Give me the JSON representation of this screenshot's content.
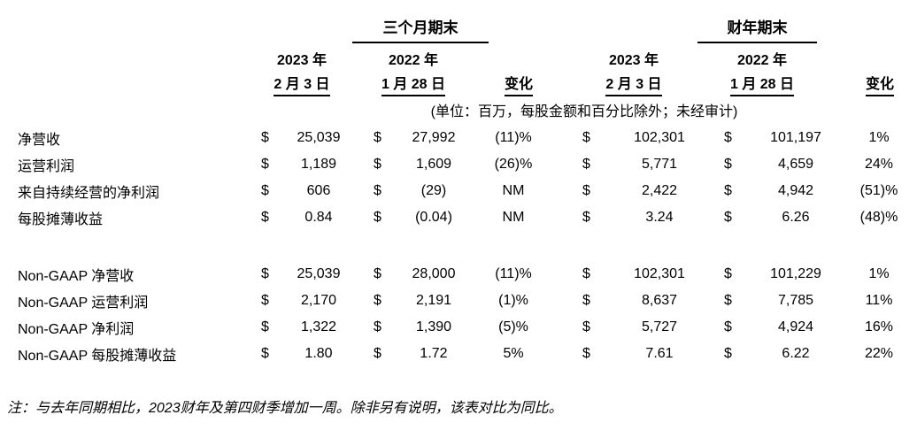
{
  "table": {
    "group_headers": {
      "three_months": "三个月期末",
      "fiscal_year": "财年期末"
    },
    "col_headers": {
      "q2023_line1": "2023 年",
      "q2023_line2": "2 月 3 日",
      "q2022_line1": "2022 年",
      "q2022_line2": "1 月 28 日",
      "fy2023_line1": "2023 年",
      "fy2023_line2": "2 月 3 日",
      "fy2022_line1": "2022 年",
      "fy2022_line2": "1 月 28 日",
      "change": "变化"
    },
    "units_note": "(单位：百万，每股金额和百分比除外；未经审计)",
    "currency_symbol": "$",
    "sections": [
      {
        "rows": [
          {
            "label": "净营收",
            "q2023": "25,039",
            "q2022": "27,992",
            "qchg": "(11)%",
            "fy2023": "102,301",
            "fy2022": "101,197",
            "fychg": "1%"
          },
          {
            "label": "运营利润",
            "q2023": "1,189",
            "q2022": "1,609",
            "qchg": "(26)%",
            "fy2023": "5,771",
            "fy2022": "4,659",
            "fychg": "24%"
          },
          {
            "label": "来自持续经营的净利润",
            "q2023": "606",
            "q2022": "(29)",
            "qchg": "NM",
            "fy2023": "2,422",
            "fy2022": "4,942",
            "fychg": "(51)%"
          },
          {
            "label": "每股摊薄收益",
            "q2023": "0.84",
            "q2022": "(0.04)",
            "qchg": "NM",
            "fy2023": "3.24",
            "fy2022": "6.26",
            "fychg": "(48)%"
          }
        ]
      },
      {
        "rows": [
          {
            "label": "Non-GAAP 净营收",
            "q2023": "25,039",
            "q2022": "28,000",
            "qchg": "(11)%",
            "fy2023": "102,301",
            "fy2022": "101,229",
            "fychg": "1%"
          },
          {
            "label": "Non-GAAP 运营利润",
            "q2023": "2,170",
            "q2022": "2,191",
            "qchg": "(1)%",
            "fy2023": "8,637",
            "fy2022": "7,785",
            "fychg": "11%"
          },
          {
            "label": "Non-GAAP 净利润",
            "q2023": "1,322",
            "q2022": "1,390",
            "qchg": "(5)%",
            "fy2023": "5,727",
            "fy2022": "4,924",
            "fychg": "16%"
          },
          {
            "label": "Non-GAAP 每股摊薄收益",
            "q2023": "1.80",
            "q2022": "1.72",
            "qchg": "5%",
            "fy2023": "7.61",
            "fy2022": "6.22",
            "fychg": "22%"
          }
        ]
      }
    ]
  },
  "footnote": "注：与去年同期相比，2023财年及第四财季增加一周。除非另有说明，该表对比为同比。"
}
